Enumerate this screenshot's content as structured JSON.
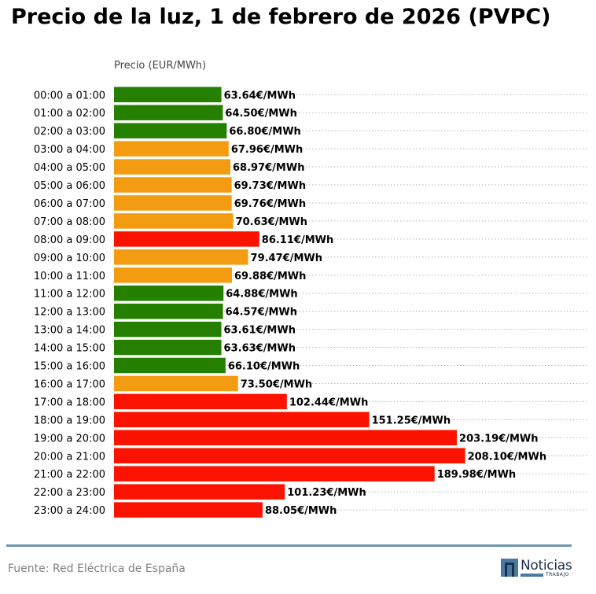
{
  "title": "Precio de la luz, 1 de febrero de 2026 (PVPC)",
  "source": "Fuente: Red Eléctrica de España",
  "logo": {
    "name": "Noticias",
    "sub": "TRABAJO"
  },
  "colors": {
    "green": "#258000",
    "orange": "#f39c12",
    "red": "#fb1300",
    "divider": "#6d96ad"
  },
  "chart_data": {
    "type": "bar",
    "orientation": "horizontal",
    "title": "Precio de la luz, 1 de febrero de 2026 (PVPC)",
    "ylabel": "Precio (EUR/MWh)",
    "value_suffix": "€/MWh",
    "grid": "dotted horizontal",
    "categories": [
      "00:00 a 01:00",
      "01:00 a 02:00",
      "02:00 a 03:00",
      "03:00 a 04:00",
      "04:00 a 05:00",
      "05:00 a 06:00",
      "06:00 a 07:00",
      "07:00 a 08:00",
      "08:00 a 09:00",
      "09:00 a 10:00",
      "10:00 a 11:00",
      "11:00 a 12:00",
      "12:00 a 13:00",
      "13:00 a 14:00",
      "14:00 a 15:00",
      "15:00 a 16:00",
      "16:00 a 17:00",
      "17:00 a 18:00",
      "18:00 a 19:00",
      "19:00 a 20:00",
      "20:00 a 21:00",
      "21:00 a 22:00",
      "22:00 a 23:00",
      "23:00 a 24:00"
    ],
    "values": [
      63.64,
      64.5,
      66.8,
      67.96,
      68.97,
      69.73,
      69.76,
      70.63,
      86.11,
      79.47,
      69.88,
      64.88,
      64.57,
      63.61,
      63.63,
      66.1,
      73.5,
      102.44,
      151.25,
      203.19,
      208.1,
      189.98,
      101.23,
      88.05
    ],
    "bar_colors": [
      "green",
      "green",
      "green",
      "orange",
      "orange",
      "orange",
      "orange",
      "orange",
      "red",
      "orange",
      "orange",
      "green",
      "green",
      "green",
      "green",
      "green",
      "orange",
      "red",
      "red",
      "red",
      "red",
      "red",
      "red",
      "red"
    ],
    "labels": [
      "63.64€/MWh",
      "64.50€/MWh",
      "66.80€/MWh",
      "67.96€/MWh",
      "68.97€/MWh",
      "69.73€/MWh",
      "69.76€/MWh",
      "70.63€/MWh",
      "86.11€/MWh",
      "79.47€/MWh",
      "69.88€/MWh",
      "64.88€/MWh",
      "64.57€/MWh",
      "63.61€/MWh",
      "63.63€/MWh",
      "66.10€/MWh",
      "73.50€/MWh",
      "102.44€/MWh",
      "151.25€/MWh",
      "203.19€/MWh",
      "208.10€/MWh",
      "189.98€/MWh",
      "101.23€/MWh",
      "88.05€/MWh"
    ]
  }
}
